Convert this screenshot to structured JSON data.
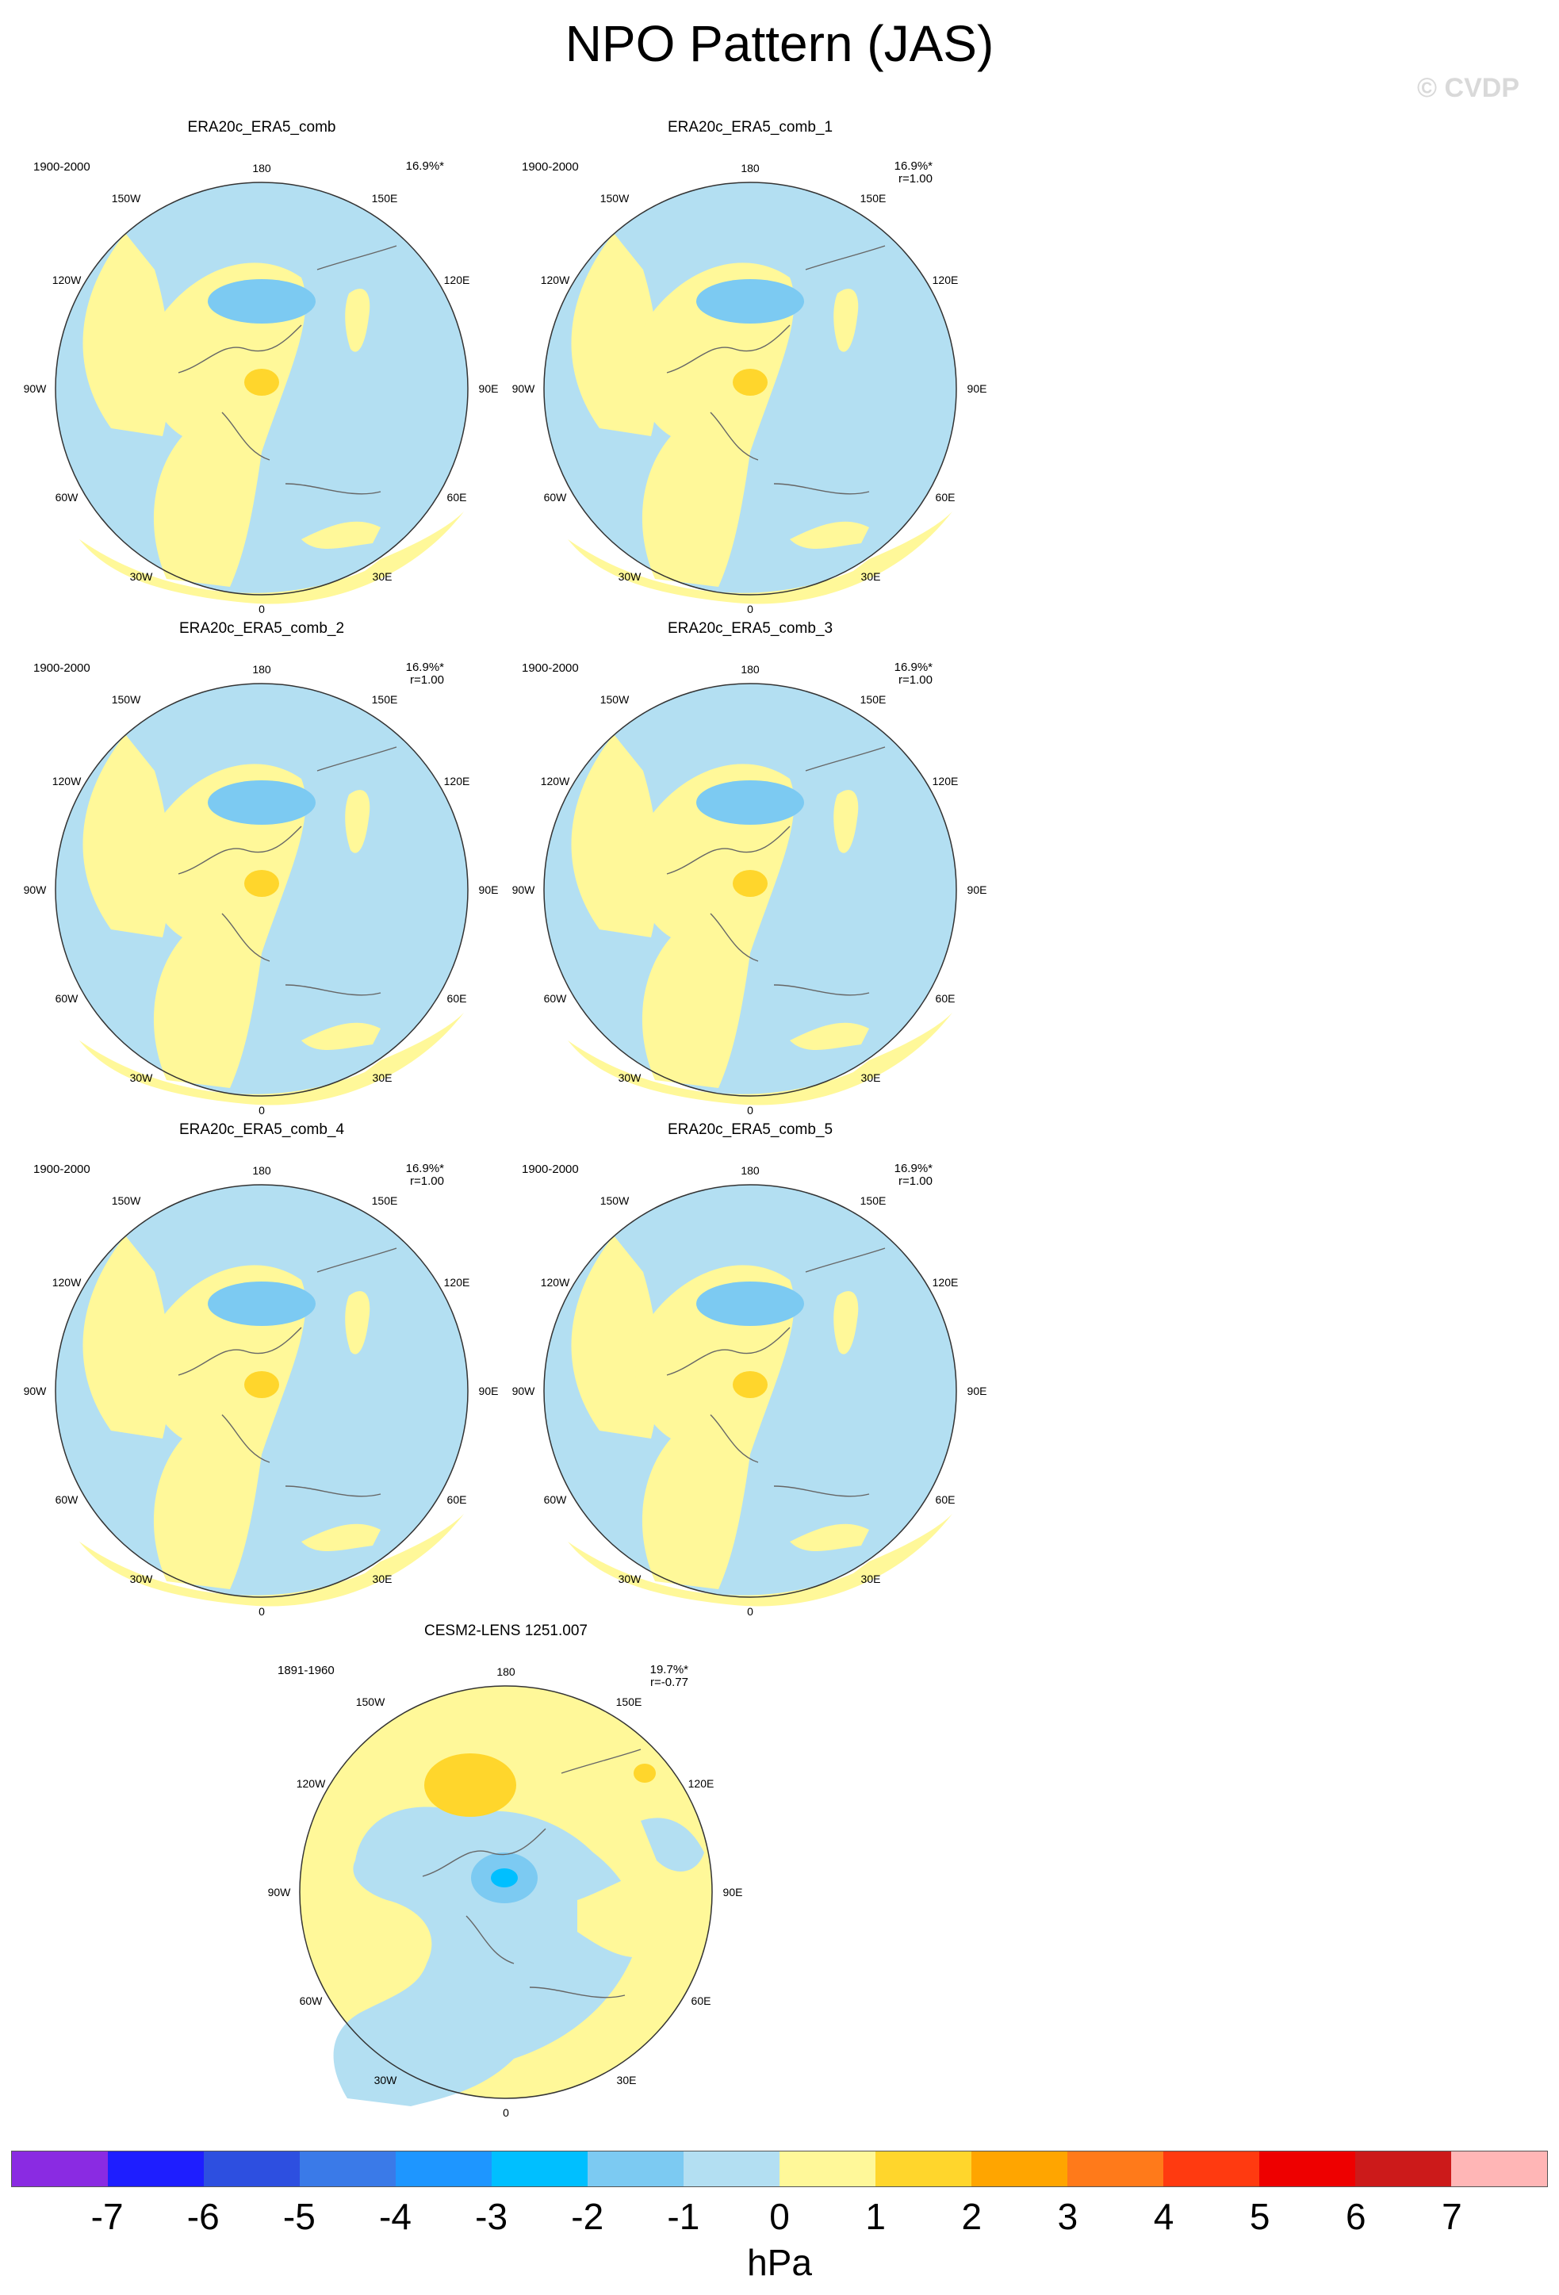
{
  "title": "NPO Pattern (JAS)",
  "copyright": "© CVDP",
  "lon_labels": {
    "l180": "180",
    "l150w": "150W",
    "l150e": "150E",
    "l120w": "120W",
    "l120e": "120E",
    "l90w": "90W",
    "l90e": "90E",
    "l60w": "60W",
    "l60e": "60E",
    "l30w": "30W",
    "l30e": "30E",
    "l0": "0"
  },
  "panels": [
    {
      "title": "ERA20c_ERA5_comb",
      "period": "1900-2000",
      "pct": "16.9%*",
      "r": "",
      "pattern": "obs"
    },
    {
      "title": "ERA20c_ERA5_comb_1",
      "period": "1900-2000",
      "pct": "16.9%*",
      "r": "r=1.00",
      "pattern": "obs"
    },
    {
      "title": "ERA20c_ERA5_comb_2",
      "period": "1900-2000",
      "pct": "16.9%*",
      "r": "r=1.00",
      "pattern": "obs"
    },
    {
      "title": "ERA20c_ERA5_comb_3",
      "period": "1900-2000",
      "pct": "16.9%*",
      "r": "r=1.00",
      "pattern": "obs"
    },
    {
      "title": "ERA20c_ERA5_comb_4",
      "period": "1900-2000",
      "pct": "16.9%*",
      "r": "r=1.00",
      "pattern": "obs"
    },
    {
      "title": "ERA20c_ERA5_comb_5",
      "period": "1900-2000",
      "pct": "16.9%*",
      "r": "r=1.00",
      "pattern": "obs"
    },
    {
      "title": "CESM2-LENS 1251.007",
      "period": "1891-1960",
      "pct": "19.7%*",
      "r": "r=-0.77",
      "pattern": "model"
    }
  ],
  "colorbar": {
    "colors": [
      "#8a2be2",
      "#1e1eff",
      "#2d4fe0",
      "#3a7ae8",
      "#1e96ff",
      "#00bfff",
      "#7ccaf2",
      "#b3dff2",
      "#fff899",
      "#ffd62c",
      "#ffa500",
      "#ff7a1a",
      "#ff3a10",
      "#ee0000",
      "#cc1a1a",
      "#ffb6b6"
    ],
    "ticks": [
      "-7",
      "-6",
      "-5",
      "-4",
      "-3",
      "-2",
      "-1",
      "0",
      "1",
      "2",
      "3",
      "4",
      "5",
      "6",
      "7"
    ],
    "unit": "hPa"
  }
}
